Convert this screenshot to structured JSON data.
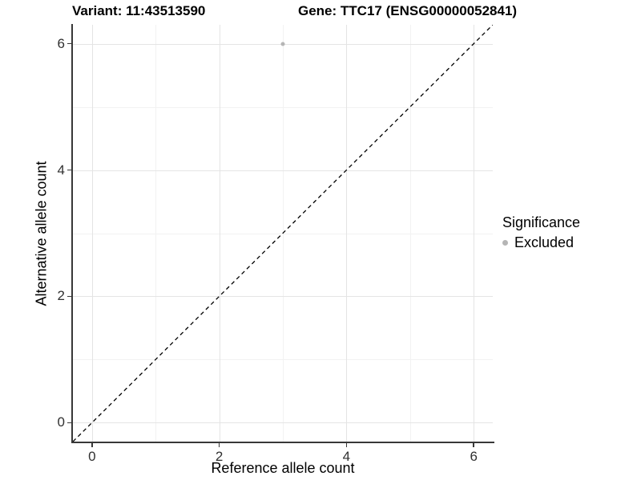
{
  "titles": {
    "variant": "Variant: 11:43513590",
    "gene": "Gene: TTC17 (ENSG00000052841)"
  },
  "legend": {
    "title": "Significance",
    "position": "right",
    "items": [
      {
        "label": "Excluded",
        "marker": "dot-icon",
        "color": "#b5b5b5"
      }
    ]
  },
  "chart_data": {
    "type": "scatter",
    "title": "",
    "xlabel": "Reference allele count",
    "ylabel": "Alternative allele count",
    "xlim": [
      -0.3,
      6.3
    ],
    "ylim": [
      -0.3,
      6.3
    ],
    "x_ticks": [
      0,
      2,
      4,
      6
    ],
    "y_ticks": [
      0,
      2,
      4,
      6
    ],
    "x_minor_gridlines": [
      1,
      3,
      5
    ],
    "y_minor_gridlines": [
      1,
      3,
      5
    ],
    "grid": true,
    "legend_position": "right",
    "series": [
      {
        "name": "Excluded",
        "color": "#b5b5b5",
        "points": [
          {
            "x": 3,
            "y": 6
          }
        ]
      }
    ],
    "reference_line": {
      "type": "identity",
      "style": "dashed",
      "from": [
        -0.3,
        -0.3
      ],
      "to": [
        6.3,
        6.3
      ],
      "color": "#000000"
    }
  },
  "colors": {
    "background": "#ffffff",
    "grid_major": "#e4e4e4",
    "grid_minor": "#f2f2f2",
    "axis": "#383838",
    "tick_text": "#303030",
    "reference_line": "#000000",
    "point": "#b5b5b5"
  }
}
